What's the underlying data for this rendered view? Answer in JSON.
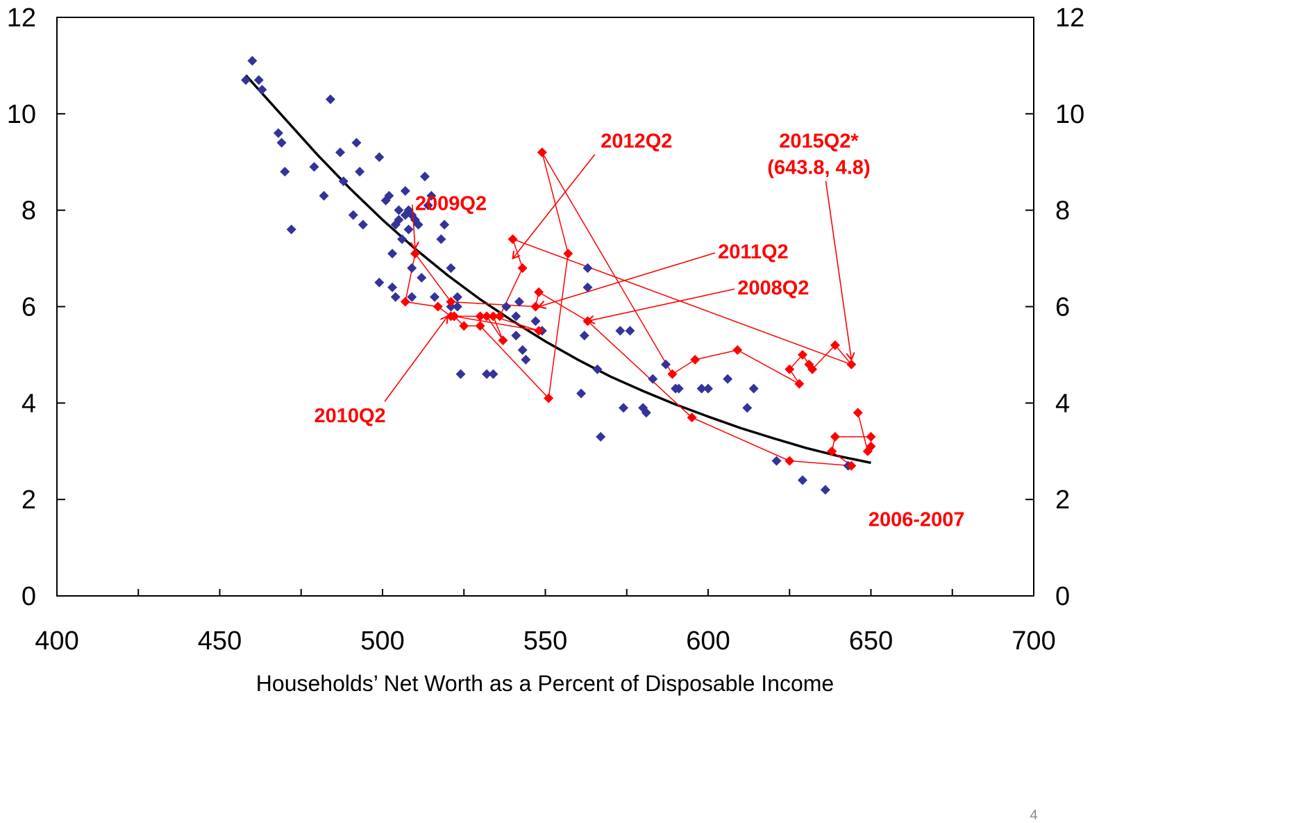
{
  "chart_data": {
    "type": "scatter",
    "title": "",
    "xlabel": "Households’ Net Worth as a Percent of Disposable Income",
    "ylabel": "",
    "xlim": [
      400,
      700
    ],
    "ylim": [
      0,
      12
    ],
    "x_ticks": [
      "400",
      "450",
      "500",
      "550",
      "600",
      "650",
      "700"
    ],
    "y_ticks_left": [
      "0",
      "2",
      "4",
      "6",
      "8",
      "10",
      "12"
    ],
    "y_ticks_right": [
      "0",
      "2",
      "4",
      "6",
      "8",
      "10",
      "12"
    ],
    "grid": false,
    "colors": {
      "historical": "#333399",
      "recent": "#ff0000",
      "fit": "#000000",
      "annotation": "#ff0000"
    },
    "series": [
      {
        "kind": "scatter",
        "color": "#333399",
        "points": [
          [
            458,
            10.7
          ],
          [
            460,
            11.1
          ],
          [
            462,
            10.7
          ],
          [
            463,
            10.5
          ],
          [
            468,
            9.6
          ],
          [
            469,
            9.4
          ],
          [
            470,
            8.8
          ],
          [
            472,
            7.6
          ],
          [
            479,
            8.9
          ],
          [
            482,
            8.3
          ],
          [
            484,
            10.3
          ],
          [
            487,
            9.2
          ],
          [
            488,
            8.6
          ],
          [
            491,
            7.9
          ],
          [
            492,
            9.4
          ],
          [
            493,
            8.8
          ],
          [
            494,
            7.7
          ],
          [
            499,
            6.5
          ],
          [
            499,
            9.1
          ],
          [
            501,
            8.2
          ],
          [
            502,
            8.3
          ],
          [
            503,
            7.1
          ],
          [
            503,
            6.4
          ],
          [
            504,
            6.2
          ],
          [
            504,
            7.7
          ],
          [
            505,
            8.0
          ],
          [
            505,
            7.8
          ],
          [
            506,
            7.4
          ],
          [
            507,
            7.9
          ],
          [
            507,
            8.4
          ],
          [
            508,
            8.0
          ],
          [
            508,
            7.6
          ],
          [
            509,
            7.9
          ],
          [
            509,
            6.8
          ],
          [
            509,
            6.2
          ],
          [
            510,
            7.8
          ],
          [
            511,
            7.7
          ],
          [
            512,
            6.6
          ],
          [
            513,
            8.7
          ],
          [
            514,
            8.1
          ],
          [
            515,
            8.3
          ],
          [
            516,
            6.2
          ],
          [
            518,
            7.4
          ],
          [
            519,
            7.7
          ],
          [
            521,
            6.0
          ],
          [
            521,
            6.8
          ],
          [
            522,
            5.8
          ],
          [
            523,
            6.2
          ],
          [
            523,
            6.0
          ],
          [
            524,
            4.6
          ],
          [
            532,
            4.6
          ],
          [
            534,
            4.6
          ],
          [
            538,
            6.0
          ],
          [
            541,
            5.4
          ],
          [
            541,
            5.8
          ],
          [
            542,
            6.1
          ],
          [
            543,
            5.1
          ],
          [
            544,
            4.9
          ],
          [
            547,
            5.7
          ],
          [
            549,
            5.5
          ],
          [
            561,
            4.2
          ],
          [
            562,
            5.4
          ],
          [
            563,
            6.8
          ],
          [
            563,
            6.4
          ],
          [
            566,
            4.7
          ],
          [
            567,
            3.3
          ],
          [
            573,
            5.5
          ],
          [
            574,
            3.9
          ],
          [
            576,
            5.5
          ],
          [
            580,
            3.9
          ],
          [
            581,
            3.8
          ],
          [
            583,
            4.5
          ],
          [
            587,
            4.8
          ],
          [
            590,
            4.3
          ],
          [
            591,
            4.3
          ],
          [
            598,
            4.3
          ],
          [
            600,
            4.3
          ],
          [
            606,
            4.5
          ],
          [
            612,
            3.9
          ],
          [
            614,
            4.3
          ],
          [
            621,
            2.8
          ],
          [
            629,
            2.4
          ],
          [
            636,
            2.2
          ],
          [
            643,
            2.7
          ]
        ]
      },
      {
        "kind": "line-scatter",
        "color": "#ff0000",
        "points": [
          [
            646,
            3.8
          ],
          [
            649,
            3.0
          ],
          [
            650,
            3.1
          ],
          [
            650,
            3.3
          ],
          [
            639,
            3.3
          ],
          [
            638,
            3.0
          ],
          [
            644,
            2.7
          ],
          [
            625,
            2.8
          ],
          [
            595,
            3.7
          ],
          [
            563,
            5.7
          ],
          [
            548,
            6.3
          ],
          [
            547,
            6.0
          ],
          [
            521,
            6.1
          ],
          [
            510,
            7.1
          ],
          [
            507,
            6.1
          ],
          [
            517,
            6.0
          ],
          [
            521,
            5.8
          ],
          [
            530,
            5.8
          ],
          [
            532,
            5.8
          ],
          [
            537,
            5.3
          ],
          [
            534,
            5.8
          ],
          [
            548,
            5.5
          ],
          [
            522,
            5.8
          ],
          [
            525,
            5.6
          ],
          [
            530,
            5.6
          ],
          [
            551,
            4.1
          ],
          [
            557,
            7.1
          ],
          [
            549,
            9.2
          ],
          [
            589,
            4.6
          ],
          [
            596,
            4.9
          ],
          [
            609,
            5.1
          ],
          [
            628,
            4.4
          ],
          [
            625,
            4.7
          ],
          [
            629,
            5.0
          ],
          [
            631,
            4.8
          ],
          [
            632,
            4.7
          ],
          [
            639,
            5.2
          ],
          [
            644,
            4.8
          ],
          [
            540,
            7.4
          ],
          [
            543,
            6.8
          ],
          [
            536,
            5.8
          ]
        ]
      },
      {
        "kind": "fit-line",
        "color": "#000000",
        "points": [
          [
            458,
            10.8
          ],
          [
            470,
            9.9
          ],
          [
            480,
            9.15
          ],
          [
            490,
            8.45
          ],
          [
            500,
            7.8
          ],
          [
            510,
            7.2
          ],
          [
            520,
            6.65
          ],
          [
            530,
            6.15
          ],
          [
            540,
            5.7
          ],
          [
            550,
            5.28
          ],
          [
            560,
            4.9
          ],
          [
            570,
            4.55
          ],
          [
            580,
            4.25
          ],
          [
            590,
            3.97
          ],
          [
            600,
            3.72
          ],
          [
            610,
            3.48
          ],
          [
            620,
            3.27
          ],
          [
            630,
            3.07
          ],
          [
            640,
            2.9
          ],
          [
            650,
            2.76
          ]
        ]
      }
    ],
    "annotations": [
      {
        "text": "2012Q2",
        "pos": [
          578,
          9.3
        ],
        "anchor": "middle",
        "arrow_to": [
          540,
          7.0
        ]
      },
      {
        "text": "2015Q2*",
        "pos": [
          634,
          9.3
        ],
        "anchor": "middle"
      },
      {
        "text": "(643.8, 4.8)",
        "pos": [
          634,
          8.75
        ],
        "anchor": "middle",
        "arrow_to": [
          644,
          4.9
        ]
      },
      {
        "text": "2009Q2",
        "pos": [
          510,
          8.0
        ],
        "anchor": "start",
        "arrow_to": [
          510,
          7.2
        ]
      },
      {
        "text": "2011Q2",
        "pos": [
          603,
          7.0
        ],
        "anchor": "start",
        "arrow_to": [
          548,
          6.0
        ]
      },
      {
        "text": "2008Q2",
        "pos": [
          609,
          6.25
        ],
        "anchor": "start",
        "arrow_to": [
          563,
          5.7
        ]
      },
      {
        "text": "2010Q2",
        "pos": [
          490,
          3.6
        ],
        "anchor": "middle",
        "arrow_to": [
          520,
          5.8
        ]
      },
      {
        "text": "2006-2007",
        "pos": [
          664,
          1.45
        ],
        "anchor": "middle"
      }
    ],
    "page_number": "4"
  }
}
